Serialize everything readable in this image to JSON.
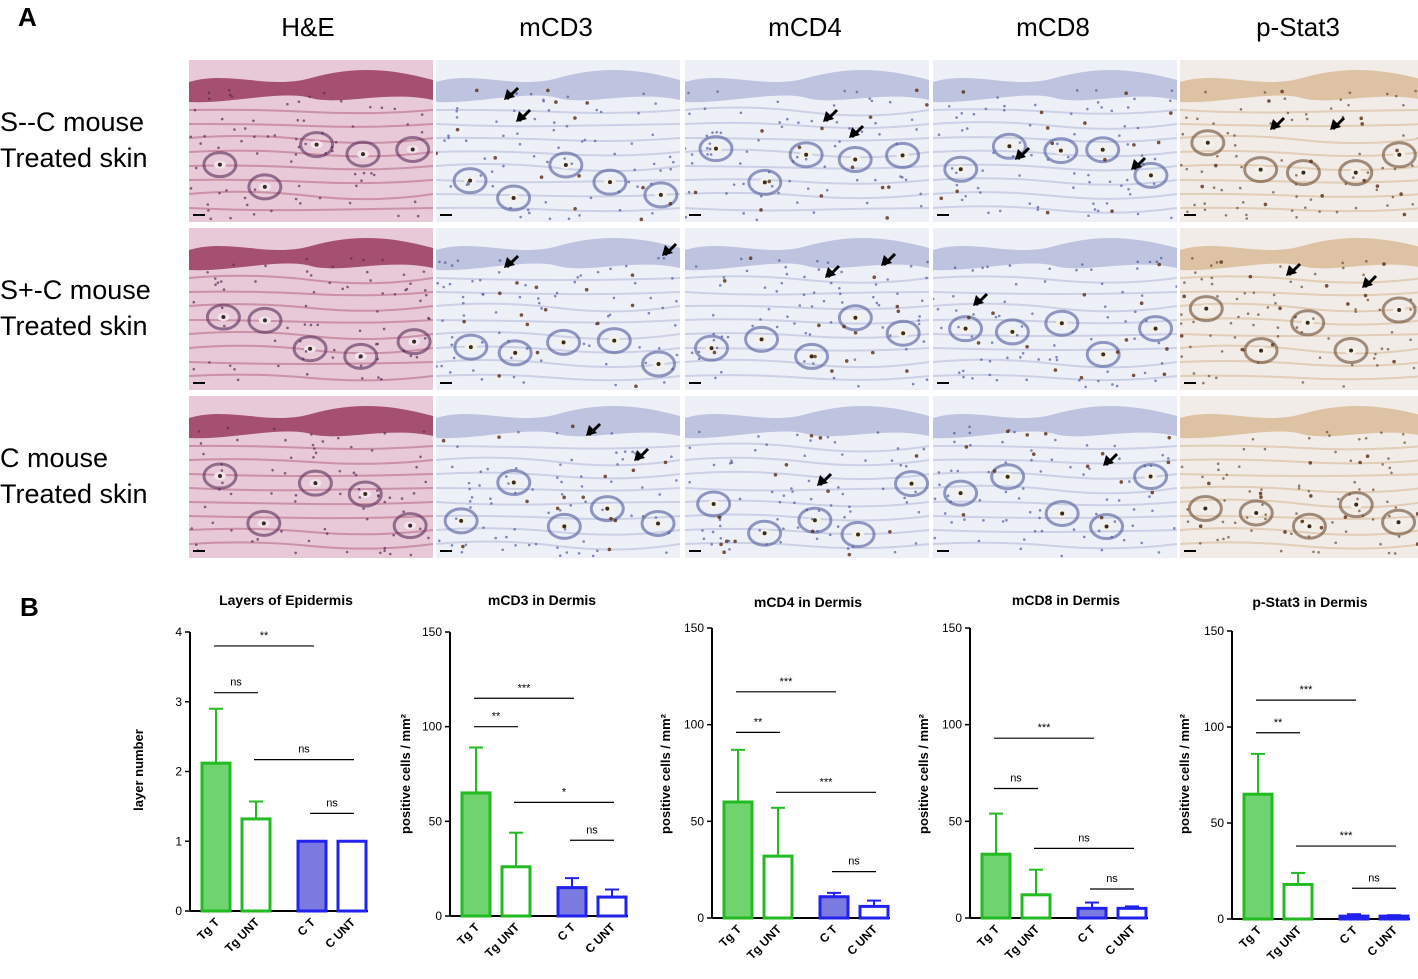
{
  "panelA": {
    "letter": "A",
    "columns": [
      "H&E",
      "mCD3",
      "mCD4",
      "mCD8",
      "p-Stat3"
    ],
    "rows": [
      {
        "line1": "S--C mouse",
        "line2": "Treated skin"
      },
      {
        "line1": "S+-C mouse",
        "line2": "Treated skin"
      },
      {
        "line1": "C mouse",
        "line2": "Treated skin"
      }
    ],
    "stain_colors": {
      "H&E": {
        "bg": "#e7c9d8",
        "tissue": "#b7607f",
        "nuclei": "#5a2b59",
        "epidermis": "#9a3b5e"
      },
      "IHC": {
        "bg": "#eef0f7",
        "tissue": "#aeb6d8",
        "nuclei": "#4f5a9a",
        "positive": "#5a2a10"
      },
      "p-Stat3": {
        "bg": "#f1ece8",
        "tissue": "#d6b48c",
        "nuclei": "#6b4a2e",
        "positive": "#5a2a10"
      }
    }
  },
  "panelB": {
    "letter": "B",
    "green": "#22bb22",
    "green_fill": "#6fd46f",
    "blue": "#2222ee",
    "blue_fill": "#7a7ae0"
  },
  "chart_data": [
    {
      "type": "bar",
      "title": "Layers of Epidermis",
      "ylabel": "layer number",
      "ylim": [
        0,
        4
      ],
      "yticks": [
        0,
        1,
        2,
        3,
        4
      ],
      "categories": [
        "Tg T",
        "Tg UNT",
        "C T",
        "C UNT"
      ],
      "values": [
        2.12,
        1.32,
        1.0,
        1.0
      ],
      "errors": [
        0.78,
        0.25,
        0,
        0
      ],
      "comparisons": [
        {
          "from": 0,
          "to": 2,
          "label": "**",
          "y": 3.8
        },
        {
          "from": 0,
          "to": 1,
          "label": "ns",
          "y": 3.13
        },
        {
          "from": 1,
          "to": 3,
          "label": "ns",
          "y": 2.17
        },
        {
          "from": 2,
          "to": 3,
          "label": "ns",
          "y": 1.4
        }
      ]
    },
    {
      "type": "bar",
      "title": "mCD3 in Dermis",
      "ylabel": "positive cells / mm²",
      "ylim": [
        0,
        150
      ],
      "yticks": [
        0,
        50,
        100,
        150
      ],
      "categories": [
        "Tg T",
        "Tg UNT",
        "C T",
        "C UNT"
      ],
      "values": [
        65,
        26,
        15,
        10
      ],
      "errors": [
        24,
        18,
        5,
        4
      ],
      "comparisons": [
        {
          "from": 0,
          "to": 2,
          "label": "***",
          "y": 115
        },
        {
          "from": 0,
          "to": 1,
          "label": "**",
          "y": 100
        },
        {
          "from": 1,
          "to": 3,
          "label": "*",
          "y": 60
        },
        {
          "from": 2,
          "to": 3,
          "label": "ns",
          "y": 40
        }
      ]
    },
    {
      "type": "bar",
      "title": "mCD4 in Dermis",
      "ylabel": "positive cells / mm²",
      "ylim": [
        0,
        150
      ],
      "yticks": [
        0,
        50,
        100,
        150
      ],
      "categories": [
        "Tg T",
        "Tg UNT",
        "C T",
        "C UNT"
      ],
      "values": [
        60,
        32,
        11,
        6
      ],
      "errors": [
        27,
        25,
        2,
        3
      ],
      "comparisons": [
        {
          "from": 0,
          "to": 2,
          "label": "***",
          "y": 117
        },
        {
          "from": 0,
          "to": 1,
          "label": "**",
          "y": 96
        },
        {
          "from": 1,
          "to": 3,
          "label": "***",
          "y": 65
        },
        {
          "from": 2,
          "to": 3,
          "label": "ns",
          "y": 24
        }
      ]
    },
    {
      "type": "bar",
      "title": "mCD8 in Dermis",
      "ylabel": "positive cells / mm²",
      "ylim": [
        0,
        150
      ],
      "yticks": [
        0,
        50,
        100,
        150
      ],
      "categories": [
        "Tg T",
        "Tg UNT",
        "C T",
        "C UNT"
      ],
      "values": [
        33,
        12,
        5,
        5
      ],
      "errors": [
        21,
        13,
        3,
        1
      ],
      "comparisons": [
        {
          "from": 0,
          "to": 2,
          "label": "***",
          "y": 93
        },
        {
          "from": 0,
          "to": 1,
          "label": "ns",
          "y": 67
        },
        {
          "from": 1,
          "to": 3,
          "label": "ns",
          "y": 36
        },
        {
          "from": 2,
          "to": 3,
          "label": "ns",
          "y": 15
        }
      ]
    },
    {
      "type": "bar",
      "title": "p-Stat3 in Dermis",
      "ylabel": "positive cells / mm²",
      "ylim": [
        0,
        150
      ],
      "yticks": [
        0,
        50,
        100,
        150
      ],
      "categories": [
        "Tg T",
        "Tg UNT",
        "C T",
        "C UNT"
      ],
      "values": [
        65,
        18,
        1.5,
        1.5
      ],
      "errors": [
        21,
        6,
        1,
        0.5
      ],
      "comparisons": [
        {
          "from": 0,
          "to": 2,
          "label": "***",
          "y": 114
        },
        {
          "from": 0,
          "to": 1,
          "label": "**",
          "y": 97
        },
        {
          "from": 1,
          "to": 3,
          "label": "***",
          "y": 38
        },
        {
          "from": 2,
          "to": 3,
          "label": "ns",
          "y": 16
        }
      ]
    }
  ]
}
